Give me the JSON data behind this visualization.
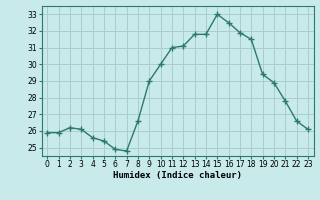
{
  "x": [
    0,
    1,
    2,
    3,
    4,
    5,
    6,
    7,
    8,
    9,
    10,
    11,
    12,
    13,
    14,
    15,
    16,
    17,
    18,
    19,
    20,
    21,
    22,
    23
  ],
  "y": [
    25.9,
    25.9,
    26.2,
    26.1,
    25.6,
    25.4,
    24.9,
    24.8,
    26.6,
    29.0,
    30.0,
    31.0,
    31.1,
    31.8,
    31.8,
    33.0,
    32.5,
    31.9,
    31.5,
    29.4,
    28.9,
    27.8,
    26.6,
    26.1
  ],
  "line_color": "#2d7a6a",
  "marker": "+",
  "marker_size": 4,
  "bg_color": "#c8eaea",
  "grid_color": "#aacece",
  "xlabel": "Humidex (Indice chaleur)",
  "xlim": [
    -0.5,
    23.5
  ],
  "ylim": [
    24.5,
    33.5
  ],
  "yticks": [
    25,
    26,
    27,
    28,
    29,
    30,
    31,
    32,
    33
  ],
  "xticks": [
    0,
    1,
    2,
    3,
    4,
    5,
    6,
    7,
    8,
    9,
    10,
    11,
    12,
    13,
    14,
    15,
    16,
    17,
    18,
    19,
    20,
    21,
    22,
    23
  ],
  "tick_label_fontsize": 5.5,
  "xlabel_fontsize": 6.5,
  "line_width": 1.0
}
